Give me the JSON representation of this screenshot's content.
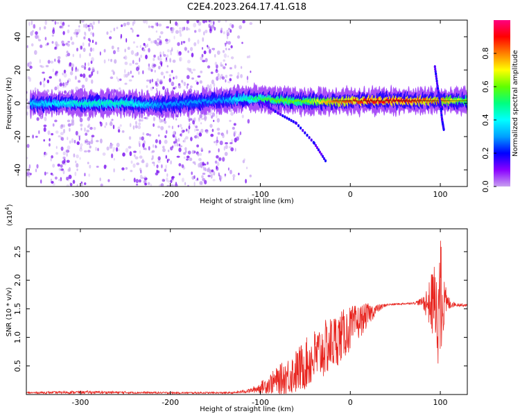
{
  "title": "C2E4.2023.264.17.41.G18",
  "chart_data": [
    {
      "type": "heatmap",
      "xlabel": "Height of straight line (km)",
      "ylabel": "Frequency (Hz)",
      "xlim": [
        -360,
        130
      ],
      "ylim": [
        -50,
        50
      ],
      "xticks": [
        "-300",
        "-200",
        "-100",
        "0",
        "100"
      ],
      "yticks": [
        "-40",
        "-20",
        "0",
        "20",
        "40"
      ],
      "colorbar": {
        "label": "Normalized spectral amplitude",
        "range": [
          0,
          1
        ],
        "ticks": [
          "0.0",
          "0.2",
          "0.4",
          "0.6",
          "0.8"
        ],
        "colors": [
          "#c8a0f0",
          "#8a00ff",
          "#0000ff",
          "#00a0ff",
          "#00ffff",
          "#00ff80",
          "#60ff00",
          "#ffff00",
          "#ff8000",
          "#ff0000",
          "#ff0080"
        ]
      },
      "ridge": [
        {
          "x": -350,
          "f": 0,
          "amp": 0.35
        },
        {
          "x": -300,
          "f": 0,
          "amp": 0.45
        },
        {
          "x": -250,
          "f": 0,
          "amp": 0.45
        },
        {
          "x": -210,
          "f": -1,
          "amp": 0.3
        },
        {
          "x": -140,
          "f": 2,
          "amp": 0.3
        },
        {
          "x": -110,
          "f": 3,
          "amp": 0.5
        },
        {
          "x": -80,
          "f": 2,
          "amp": 0.6
        },
        {
          "x": -50,
          "f": 1,
          "amp": 0.6
        },
        {
          "x": -20,
          "f": 1,
          "amp": 0.8
        },
        {
          "x": 20,
          "f": 1.5,
          "amp": 0.9
        },
        {
          "x": 60,
          "f": 1.5,
          "amp": 0.9
        },
        {
          "x": 100,
          "f": 1.5,
          "amp": 0.8
        },
        {
          "x": 130,
          "f": 1.5,
          "amp": 0.6
        }
      ],
      "branches": [
        {
          "points": [
            [
              -100,
              1
            ],
            [
              -80,
              -6
            ],
            [
              -60,
              -12
            ],
            [
              -40,
              -24
            ],
            [
              -27,
              -35
            ]
          ]
        },
        {
          "points": [
            [
              94,
              22
            ],
            [
              97,
              10
            ],
            [
              100,
              0
            ],
            [
              102,
              -10
            ],
            [
              104,
              -16
            ]
          ]
        }
      ]
    },
    {
      "type": "line",
      "xlabel": "Height of straight line (km)",
      "ylabel": "SNR (10 * v/v)",
      "y_exponent": "(x10",
      "y_exponent_power": "4",
      "y_exponent_close": ")",
      "xlim": [
        -360,
        130
      ],
      "ylim": [
        0,
        29000
      ],
      "xticks": [
        "-300",
        "-200",
        "-100",
        "0",
        "100"
      ],
      "yticks": [
        "0.5",
        "1.0",
        "1.5",
        "2.0",
        "2.5"
      ],
      "color": "#e8251f",
      "envelope": [
        {
          "x": -360,
          "base": 300,
          "amp": 150
        },
        {
          "x": -300,
          "base": 400,
          "amp": 250
        },
        {
          "x": -200,
          "base": 300,
          "amp": 150
        },
        {
          "x": -130,
          "base": 300,
          "amp": 150
        },
        {
          "x": -110,
          "base": 700,
          "amp": 400
        },
        {
          "x": -100,
          "base": 1200,
          "amp": 1000
        },
        {
          "x": -80,
          "base": 2500,
          "amp": 2500
        },
        {
          "x": -60,
          "base": 4000,
          "amp": 4000
        },
        {
          "x": -40,
          "base": 6500,
          "amp": 5000
        },
        {
          "x": -20,
          "base": 9000,
          "amp": 5000
        },
        {
          "x": 0,
          "base": 11500,
          "amp": 4000
        },
        {
          "x": 20,
          "base": 14000,
          "amp": 2000
        },
        {
          "x": 30,
          "base": 15000,
          "amp": 800
        },
        {
          "x": 40,
          "base": 15700,
          "amp": 200
        },
        {
          "x": 70,
          "base": 16000,
          "amp": 150
        },
        {
          "x": 80,
          "base": 16200,
          "amp": 800
        },
        {
          "x": 88,
          "base": 16000,
          "amp": 4000
        },
        {
          "x": 95,
          "base": 16000,
          "amp": 8000
        },
        {
          "x": 100,
          "base": 15000,
          "amp": 13000
        },
        {
          "x": 104,
          "base": 15500,
          "amp": 5000
        },
        {
          "x": 108,
          "base": 16000,
          "amp": 1500
        },
        {
          "x": 115,
          "base": 15800,
          "amp": 400
        },
        {
          "x": 130,
          "base": 15600,
          "amp": 200
        }
      ]
    }
  ]
}
